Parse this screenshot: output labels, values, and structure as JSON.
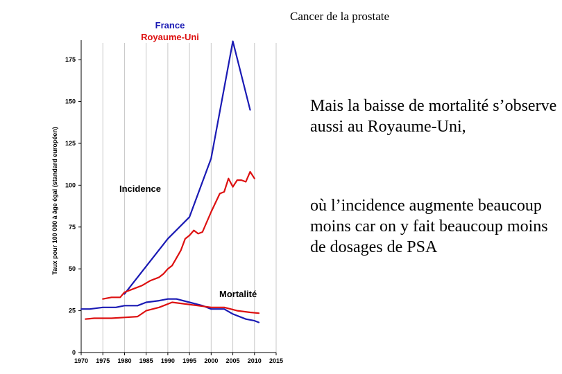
{
  "slide": {
    "title": "Cancer de la prostate",
    "paragraph1": "Mais la baisse de mortalité s’observe aussi au Royaume-Uni,",
    "paragraph2": "où l’incidence augmente beaucoup moins car on y fait beaucoup moins de dosages de PSA"
  },
  "chart_data": {
    "type": "line",
    "title": "",
    "ylabel": "Taux pour 100 000 à âge égal (standard européen)",
    "xlabel": "",
    "xlim": [
      1970,
      2015
    ],
    "ylim": [
      0,
      185
    ],
    "x_ticks": [
      1970,
      1975,
      1980,
      1985,
      1990,
      1995,
      2000,
      2005,
      2010,
      2015
    ],
    "y_ticks": [
      0,
      25,
      50,
      75,
      100,
      125,
      150,
      175
    ],
    "grid": "vertical",
    "legend": [
      "France",
      "Royaume-Uni"
    ],
    "legend_position": "top-left",
    "colors": {
      "France": "#1a1ab4",
      "Royaume-Uni": "#dd1010"
    },
    "annotations": [
      "Incidence",
      "Mortalité"
    ],
    "series": [
      {
        "name": "France",
        "group": "Incidence",
        "x": [
          1980,
          1990,
          1995,
          2000,
          2005,
          2009
        ],
        "y": [
          35,
          68,
          81,
          116,
          186,
          145
        ]
      },
      {
        "name": "Royaume-Uni",
        "group": "Incidence",
        "x": [
          1975,
          1977,
          1979,
          1980,
          1982,
          1984,
          1986,
          1988,
          1989,
          1990,
          1991,
          1993,
          1994,
          1995,
          1996,
          1997,
          1998,
          2000,
          2002,
          2003,
          2004,
          2005,
          2006,
          2007,
          2008,
          2009,
          2010
        ],
        "y": [
          32,
          33,
          33,
          36,
          38,
          40,
          43,
          45,
          47,
          50,
          52,
          61,
          68,
          70,
          73,
          71,
          72,
          84,
          95,
          96,
          104,
          99,
          103,
          103,
          102,
          108,
          104
        ]
      },
      {
        "name": "France",
        "group": "Mortalité",
        "x": [
          1970,
          1972,
          1975,
          1978,
          1980,
          1983,
          1985,
          1988,
          1990,
          1992,
          1995,
          1998,
          2000,
          2003,
          2005,
          2008,
          2010,
          2011
        ],
        "y": [
          26,
          26,
          27,
          27,
          28,
          28,
          30,
          31,
          32,
          32,
          30,
          28,
          26,
          26,
          23,
          20,
          19,
          18
        ]
      },
      {
        "name": "Royaume-Uni",
        "group": "Mortalité",
        "x": [
          1971,
          1973,
          1975,
          1977,
          1980,
          1983,
          1985,
          1988,
          1991,
          1994,
          1997,
          2000,
          2003,
          2006,
          2009,
          2011
        ],
        "y": [
          20,
          20.5,
          20.5,
          20.5,
          21,
          21.5,
          25,
          27,
          30,
          29,
          28,
          27,
          27,
          25,
          24,
          23.5
        ]
      }
    ]
  }
}
